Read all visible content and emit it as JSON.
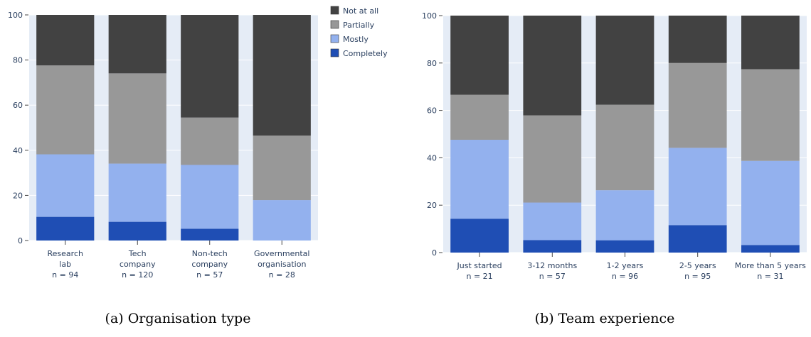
{
  "colors": {
    "plot_bg": "#E5ECF6",
    "grid": "#FFFFFF",
    "axis_text": "#2A3F5F",
    "Completely": "#1F4EB4",
    "Mostly": "#93B1EE",
    "Partially": "#989898",
    "Not at all": "#424242"
  },
  "legend": {
    "placement": "top-right of left panel",
    "items": [
      "Not at all",
      "Partially",
      "Mostly",
      "Completely"
    ]
  },
  "chart_data": [
    {
      "type": "bar",
      "stacked": true,
      "caption": "(a) Organisation type",
      "title": "",
      "xlabel": "",
      "ylabel": "",
      "ylim": [
        0,
        100
      ],
      "yticks": [
        0,
        20,
        40,
        60,
        80,
        100
      ],
      "grid": true,
      "categories": [
        [
          "Research",
          "lab",
          "n = 94"
        ],
        [
          "Tech",
          "company",
          "n = 120"
        ],
        [
          "Non-tech",
          "company",
          "n = 57"
        ],
        [
          "Governmental",
          "organisation",
          "n = 28"
        ]
      ],
      "series": [
        {
          "name": "Completely",
          "values": [
            10.5,
            8.3,
            5.2,
            0
          ]
        },
        {
          "name": "Mostly",
          "values": [
            27.7,
            25.8,
            28.3,
            17.9
          ]
        },
        {
          "name": "Partially",
          "values": [
            39.4,
            40.0,
            21.0,
            28.6
          ]
        },
        {
          "name": "Not at all",
          "values": [
            22.4,
            25.9,
            45.5,
            53.5
          ]
        }
      ]
    },
    {
      "type": "bar",
      "stacked": true,
      "caption": "(b) Team experience",
      "title": "",
      "xlabel": "",
      "ylabel": "",
      "ylim": [
        0,
        100
      ],
      "yticks": [
        0,
        20,
        40,
        60,
        80,
        100
      ],
      "grid": true,
      "categories": [
        [
          "Just started",
          "n = 21"
        ],
        [
          "3-12 months",
          "n = 57"
        ],
        [
          "1-2 years",
          "n = 96"
        ],
        [
          "2-5 years",
          "n = 95"
        ],
        [
          "More than 5 years",
          "n = 31"
        ]
      ],
      "series": [
        {
          "name": "Completely",
          "values": [
            14.3,
            5.3,
            5.2,
            11.6,
            3.2
          ]
        },
        {
          "name": "Mostly",
          "values": [
            33.3,
            15.8,
            21.1,
            32.6,
            35.5
          ]
        },
        {
          "name": "Partially",
          "values": [
            19.0,
            36.8,
            36.1,
            35.8,
            38.7
          ]
        },
        {
          "name": "Not at all",
          "values": [
            33.4,
            42.1,
            37.6,
            20.0,
            22.6
          ]
        }
      ]
    }
  ]
}
